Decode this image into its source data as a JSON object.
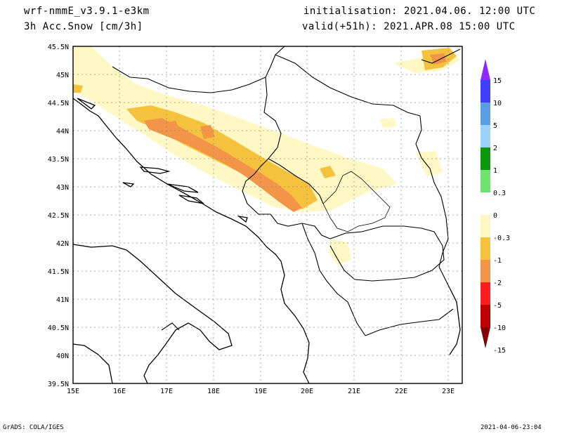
{
  "header": {
    "model": "wrf-nmmE_v3.9.1-e3km",
    "variable": "3h Acc.Snow [cm/3h]",
    "init": "initialisation: 2021.04.06.  12:00 UTC",
    "valid": "valid(+51h): 2021.APR.08 15:00 UTC"
  },
  "footer": {
    "credit": "GrADS: COLA/IGES",
    "timestamp": "2021-04-06-23:04"
  },
  "map": {
    "lat_labels": [
      "45.5N",
      "45N",
      "44.5N",
      "44N",
      "43.5N",
      "43N",
      "42.5N",
      "42N",
      "41.5N",
      "41N",
      "40.5N",
      "40N",
      "39.5N"
    ],
    "lon_labels": [
      "15E",
      "16E",
      "17E",
      "18E",
      "19E",
      "20E",
      "21E",
      "22E",
      "23E"
    ]
  },
  "legend": {
    "labels": [
      "15",
      "10",
      "5",
      "2",
      "1",
      "0.3",
      "0",
      "-0.3",
      "-1",
      "-2",
      "-5",
      "-10",
      "-15"
    ],
    "colors": [
      "#8c2bff",
      "#3f3fff",
      "#5a9ee6",
      "#9cd2f8",
      "#0c960c",
      "#6ee16e",
      "#ffffff",
      "#fff7c4",
      "#f4c23c",
      "#f39548",
      "#ff1e1e",
      "#be0000",
      "#820000"
    ]
  }
}
